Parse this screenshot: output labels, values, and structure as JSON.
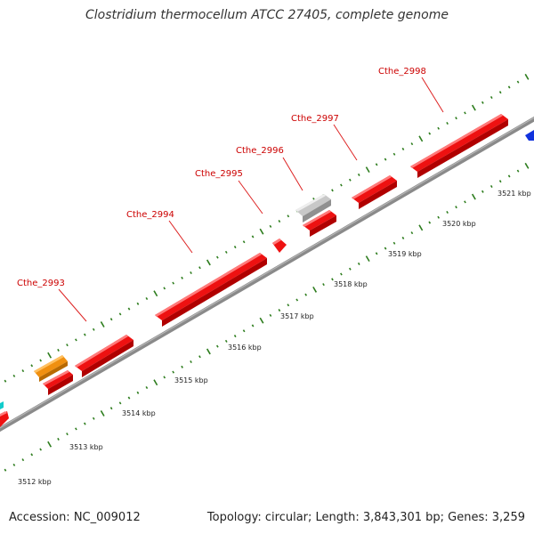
{
  "title": "Clostridium thermocellum ATCC 27405, complete genome",
  "accession": "Accession: NC_009012",
  "topology": "Topology: circular; Length: 3,843,301 bp; Genes: 3,259",
  "colors": {
    "backbone": "#8a8a8a",
    "tick": "#2e7d1e",
    "gene_red": "#ee1111",
    "gene_orange": "#f09010",
    "gene_gray": "#c8c8c8",
    "gene_blue": "#1133dd",
    "gene_cyan": "#11cccc",
    "label": "#cc0000"
  },
  "scale_labels": [
    "3512 kbp",
    "3513 kbp",
    "3514 kbp",
    "3515 kbp",
    "3516 kbp",
    "3517 kbp",
    "3518 kbp",
    "3519 kbp",
    "3520 kbp",
    "3521 kbp"
  ],
  "gene_labels": [
    "Cthe_2993",
    "Cthe_2994",
    "Cthe_2995",
    "Cthe_2996",
    "Cthe_2997",
    "Cthe_2998"
  ]
}
